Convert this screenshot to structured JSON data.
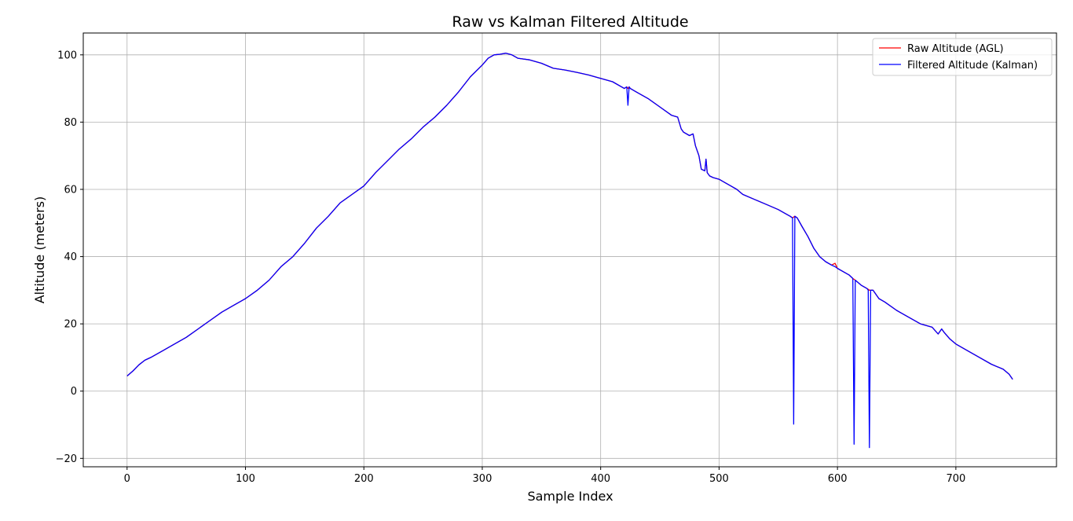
{
  "chart_data": {
    "type": "line",
    "title": "Raw vs Kalman Filtered Altitude",
    "xlabel": "Sample Index",
    "ylabel": "Altitude (meters)",
    "xlim": [
      -37,
      785
    ],
    "ylim": [
      -22.5,
      106.5
    ],
    "xticks": [
      0,
      100,
      200,
      300,
      400,
      500,
      600,
      700
    ],
    "yticks": [
      -20,
      0,
      20,
      40,
      60,
      80,
      100
    ],
    "xtick_labels": [
      "0",
      "100",
      "200",
      "300",
      "400",
      "500",
      "600",
      "700"
    ],
    "ytick_labels": [
      "−20",
      "0",
      "20",
      "40",
      "60",
      "80",
      "100"
    ],
    "grid": true,
    "legend_position": "top-right",
    "series": [
      {
        "name": "Raw Altitude (AGL)",
        "color": "#ff0000",
        "x": [
          0,
          5,
          10,
          15,
          20,
          30,
          40,
          50,
          60,
          70,
          80,
          90,
          100,
          110,
          120,
          130,
          140,
          150,
          160,
          170,
          180,
          190,
          200,
          210,
          220,
          230,
          240,
          250,
          260,
          270,
          280,
          290,
          300,
          305,
          310,
          315,
          320,
          325,
          330,
          340,
          350,
          360,
          370,
          380,
          390,
          400,
          410,
          420,
          422,
          423,
          424,
          425,
          430,
          440,
          450,
          460,
          465,
          468,
          470,
          475,
          478,
          480,
          483,
          485,
          488,
          489,
          490,
          492,
          495,
          500,
          505,
          510,
          515,
          520,
          530,
          540,
          550,
          555,
          560,
          562,
          564,
          566,
          570,
          575,
          580,
          585,
          590,
          595,
          598,
          600,
          605,
          610,
          613,
          615,
          620,
          625,
          627,
          630,
          635,
          640,
          650,
          660,
          670,
          680,
          685,
          688,
          690,
          695,
          700,
          710,
          720,
          730,
          740,
          745,
          748
        ],
        "y": [
          4.5,
          6.0,
          7.8,
          9.2,
          10.0,
          12.0,
          14.0,
          16.0,
          18.5,
          21.0,
          23.5,
          25.5,
          27.5,
          30.0,
          33.0,
          37.0,
          40.0,
          44.0,
          48.5,
          52.0,
          56.0,
          58.5,
          61.0,
          65.0,
          68.5,
          72.0,
          75.0,
          78.5,
          81.5,
          85.0,
          89.0,
          93.5,
          97.0,
          99.0,
          100.0,
          100.2,
          100.5,
          100.0,
          99.0,
          98.5,
          97.5,
          96.0,
          95.5,
          94.8,
          94.0,
          93.0,
          92.0,
          90.0,
          90.5,
          90.0,
          90.5,
          90.0,
          89.0,
          87.0,
          84.5,
          82.0,
          81.5,
          78.0,
          77.0,
          76.0,
          76.5,
          73.0,
          70.0,
          66.0,
          65.5,
          69.0,
          65.0,
          64.0,
          63.5,
          63.0,
          62.0,
          61.0,
          60.0,
          58.5,
          57.0,
          55.5,
          54.0,
          53.0,
          52.0,
          51.5,
          52.0,
          51.5,
          49.0,
          46.0,
          42.5,
          40.0,
          38.5,
          37.5,
          38.0,
          36.5,
          35.5,
          34.5,
          33.5,
          33.0,
          31.5,
          30.5,
          30.0,
          30.0,
          27.5,
          26.5,
          24.0,
          22.0,
          20.0,
          19.0,
          17.0,
          18.5,
          17.5,
          15.5,
          14.0,
          12.0,
          10.0,
          8.0,
          6.5,
          5.0,
          3.5
        ]
      },
      {
        "name": "Filtered Altitude (Kalman)",
        "color": "#0000ff",
        "x": [
          0,
          5,
          10,
          15,
          20,
          30,
          40,
          50,
          60,
          70,
          80,
          90,
          100,
          110,
          120,
          130,
          140,
          150,
          160,
          170,
          180,
          190,
          200,
          210,
          220,
          230,
          240,
          250,
          260,
          270,
          280,
          290,
          300,
          305,
          310,
          315,
          320,
          325,
          330,
          340,
          350,
          360,
          370,
          380,
          390,
          400,
          410,
          420,
          422,
          423,
          424,
          425,
          430,
          440,
          450,
          460,
          465,
          468,
          470,
          475,
          478,
          480,
          483,
          485,
          488,
          489,
          490,
          492,
          495,
          500,
          505,
          510,
          515,
          520,
          530,
          540,
          550,
          555,
          560,
          562,
          563,
          564,
          566,
          570,
          575,
          580,
          585,
          590,
          595,
          598,
          600,
          605,
          610,
          613,
          614,
          615,
          620,
          625,
          626,
          627,
          628,
          630,
          635,
          640,
          650,
          660,
          670,
          680,
          685,
          688,
          690,
          695,
          700,
          710,
          720,
          730,
          740,
          745,
          748
        ],
        "y": [
          4.5,
          6.0,
          7.8,
          9.2,
          10.0,
          12.0,
          14.0,
          16.0,
          18.5,
          21.0,
          23.5,
          25.5,
          27.5,
          30.0,
          33.0,
          37.0,
          40.0,
          44.0,
          48.5,
          52.0,
          56.0,
          58.5,
          61.0,
          65.0,
          68.5,
          72.0,
          75.0,
          78.5,
          81.5,
          85.0,
          89.0,
          93.5,
          97.0,
          99.0,
          100.0,
          100.2,
          100.5,
          100.0,
          99.0,
          98.5,
          97.5,
          96.0,
          95.5,
          94.8,
          94.0,
          93.0,
          92.0,
          90.0,
          90.5,
          85.0,
          90.5,
          90.0,
          89.0,
          87.0,
          84.5,
          82.0,
          81.5,
          78.0,
          77.0,
          76.0,
          76.5,
          73.0,
          70.0,
          66.0,
          65.5,
          69.0,
          65.0,
          64.0,
          63.5,
          63.0,
          62.0,
          61.0,
          60.0,
          58.5,
          57.0,
          55.5,
          54.0,
          53.0,
          52.0,
          51.5,
          -9.8,
          52.0,
          51.5,
          49.0,
          46.0,
          42.5,
          40.0,
          38.5,
          37.5,
          37.0,
          36.5,
          35.5,
          34.5,
          33.5,
          -15.8,
          33.0,
          31.5,
          30.5,
          30.0,
          -16.8,
          30.0,
          30.0,
          27.5,
          26.5,
          24.0,
          22.0,
          20.0,
          19.0,
          17.0,
          18.5,
          17.5,
          15.5,
          14.0,
          12.0,
          10.0,
          8.0,
          6.5,
          5.0,
          3.5
        ]
      }
    ]
  }
}
